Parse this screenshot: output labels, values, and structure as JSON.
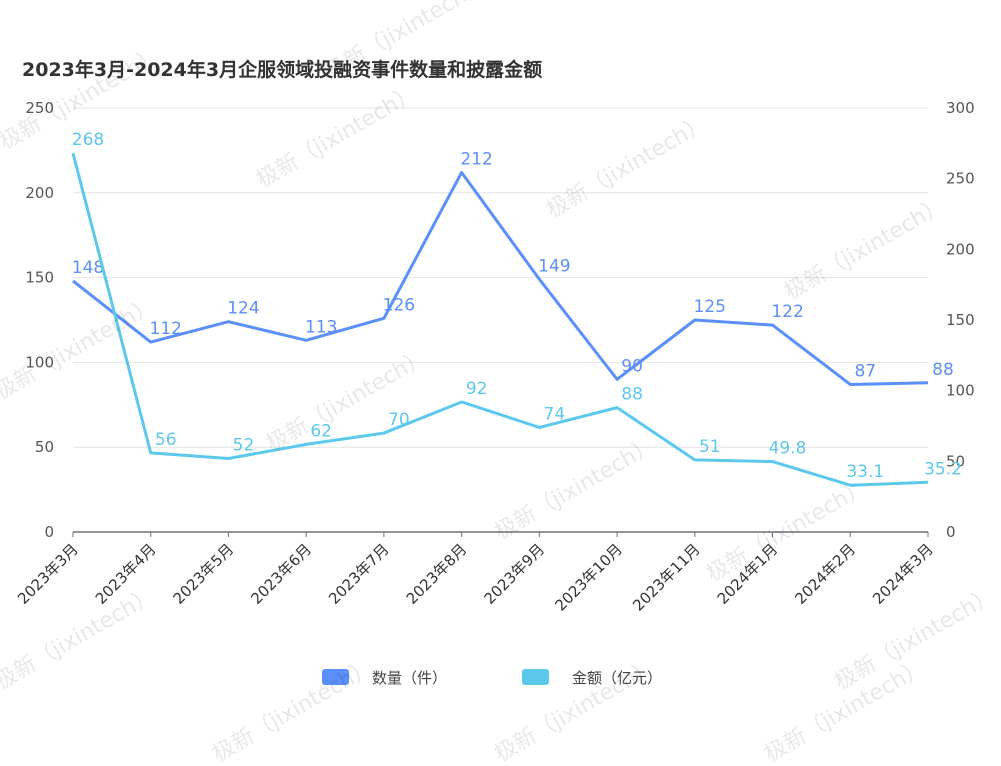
{
  "chart_data": {
    "type": "line",
    "title": "2023年3月-2024年3月企服领域投融资事件数量和披露金额",
    "categories": [
      "2023年3月",
      "2023年4月",
      "2023年5月",
      "2023年6月",
      "2023年7月",
      "2023年8月",
      "2023年9月",
      "2023年10月",
      "2023年11月",
      "2024年1月",
      "2024年2月",
      "2024年3月"
    ],
    "series": [
      {
        "name": "数量（件）",
        "axis": "left",
        "color": "#5b8ff9",
        "values": [
          148,
          112,
          124,
          113,
          126,
          212,
          149,
          90,
          125,
          122,
          87,
          88
        ],
        "labels": [
          "148",
          "112",
          "124",
          "113",
          "126",
          "212",
          "149",
          "90",
          "125",
          "122",
          "87",
          "88"
        ]
      },
      {
        "name": "金额（亿元）",
        "axis": "right",
        "color": "#5bc8ec",
        "values": [
          268,
          56,
          52,
          62,
          70,
          92,
          74,
          88,
          51,
          49.8,
          33.1,
          35.2
        ],
        "labels": [
          "268",
          "56",
          "52",
          "62",
          "70",
          "92",
          "74",
          "88",
          "51",
          "49.8",
          "33.1",
          "35.2"
        ]
      }
    ],
    "y_left": {
      "min": 0,
      "max": 250,
      "ticks": [
        "0",
        "50",
        "100",
        "150",
        "200",
        "250"
      ]
    },
    "y_right": {
      "min": 0,
      "max": 300,
      "ticks": [
        "0",
        "50",
        "100",
        "150",
        "200",
        "250",
        "300"
      ]
    },
    "grid": true,
    "legend_position": "bottom"
  },
  "watermark": "极新（jixintech）"
}
